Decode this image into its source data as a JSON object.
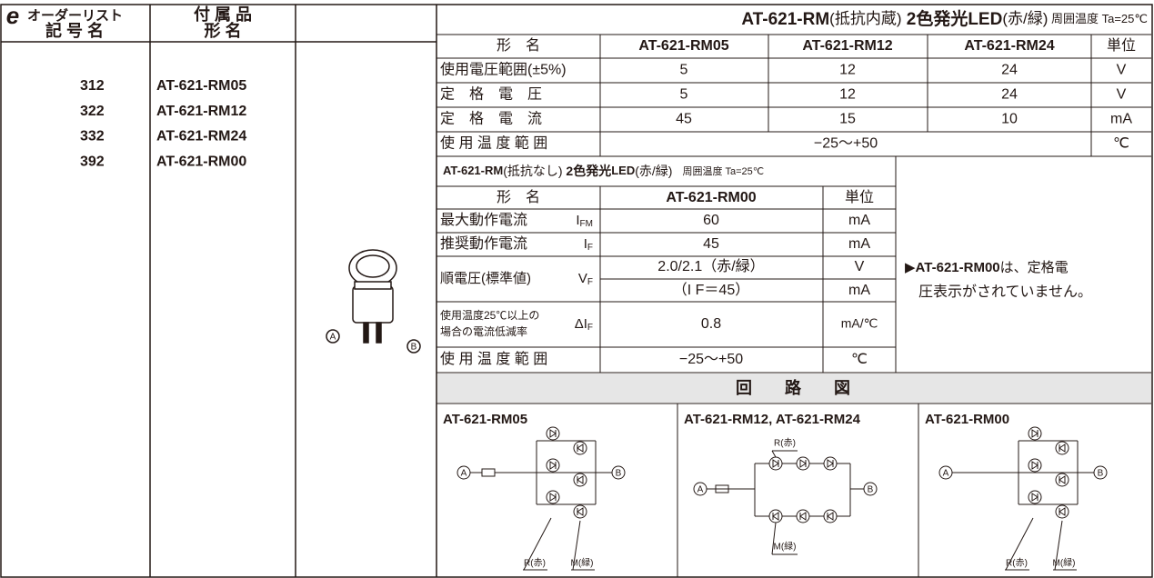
{
  "logo": "e",
  "order_list": {
    "header": [
      "オーダーリスト",
      "記 号 名"
    ],
    "accessory_header": [
      "付 属 品",
      "形 名"
    ],
    "rows": [
      [
        "312",
        "AT-621-RM05"
      ],
      [
        "322",
        "AT-621-RM12"
      ],
      [
        "332",
        "AT-621-RM24"
      ],
      [
        "392",
        "AT-621-RM00"
      ]
    ]
  },
  "image_labels": [
    "A",
    "B"
  ],
  "spec_table": {
    "title": [
      "AT-621-RM",
      "(抵抗内蔵)",
      " 2色発光LED",
      "(赤/緑)",
      " 周囲温度 Ta=25℃"
    ],
    "header": [
      "形　名",
      "AT-621-RM05",
      "AT-621-RM12",
      "AT-621-RM24",
      "単位"
    ],
    "rows": [
      [
        "使用電圧範囲(±5%)",
        "5",
        "12",
        "24",
        "V"
      ],
      [
        "定　格　電　圧",
        "5",
        "12",
        "24",
        "V"
      ],
      [
        "定　格　電　流",
        "45",
        "15",
        "10",
        "mA"
      ]
    ],
    "temp_row": [
      "使 用 温 度 範 囲",
      "−25〜+50",
      "℃"
    ]
  },
  "rm00_table": {
    "title": [
      "AT-621-RM",
      "(抵抗なし)",
      " 2色発光",
      "LED",
      "(赤/緑)",
      "　周囲温度 Ta=25℃"
    ],
    "header": [
      "形　名",
      "AT-621-RM00",
      "単位"
    ],
    "max_current": [
      "最大動作電流",
      "I",
      "FM",
      "60",
      "mA"
    ],
    "rec_current": [
      "推奨動作電流",
      "I",
      "F",
      "45",
      "mA"
    ],
    "forward_voltage": {
      "label": "順電圧(標準値)",
      "symbol": [
        "V",
        "F"
      ],
      "values": [
        "2.0/2.1（赤/緑）",
        "（I F＝45）"
      ],
      "units": [
        "V",
        "mA"
      ]
    },
    "derating": {
      "label": [
        "使用温度25℃以上の",
        "場合の電流低減率"
      ],
      "symbol": [
        "ΔI",
        "F"
      ],
      "value": "0.8",
      "unit": "mA/℃"
    },
    "temp_row": [
      "使 用 温 度 範 囲",
      "−25〜+50",
      "℃"
    ],
    "note": [
      "▶",
      "AT-621-RM00",
      "は、定格電",
      "圧表示がされていません。"
    ]
  },
  "circuit": {
    "title": "回　　路　　図",
    "panels": [
      {
        "title": "AT-621-RM05",
        "a": "A",
        "b": "B",
        "r": "R(赤)",
        "m": "M(緑)"
      },
      {
        "title": "AT-621-RM12, AT-621-RM24",
        "a": "A",
        "b": "B",
        "r": "R(赤)",
        "m": "M(緑)"
      },
      {
        "title": "AT-621-RM00",
        "a": "A",
        "b": "B",
        "r": "R(赤)",
        "m": "M(緑)"
      }
    ]
  }
}
